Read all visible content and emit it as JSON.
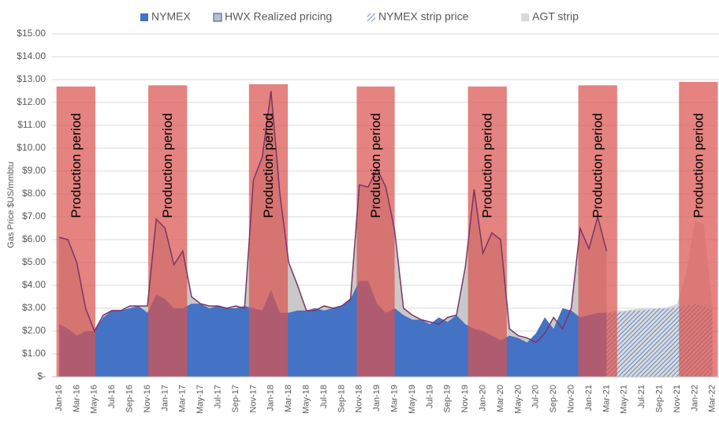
{
  "chart_data": {
    "type": "area",
    "y_label": "Gas Price $US/mmbtu",
    "categories": [
      "Jan-16",
      null,
      "Mar-16",
      null,
      "May-16",
      null,
      "Jul-16",
      null,
      "Sep-16",
      null,
      "Nov-16",
      null,
      "Jan-17",
      null,
      "Mar-17",
      null,
      "May-17",
      null,
      "Jul-17",
      null,
      "Sep-17",
      null,
      "Nov-17",
      null,
      "Jan-18",
      null,
      "Mar-18",
      null,
      "May-18",
      null,
      "Jul-18",
      null,
      "Sep-18",
      null,
      "Nov-18",
      null,
      "Jan-19",
      null,
      "Mar-19",
      null,
      "May-19",
      null,
      "Jul-19",
      null,
      "Sep-19",
      null,
      "Nov-19",
      null,
      "Jan-20",
      null,
      "Mar-20",
      null,
      "May-20",
      null,
      "Jul-20",
      null,
      "Sep-20",
      null,
      "Nov-20",
      null,
      "Jan-21",
      null,
      "Mar-21",
      null,
      "May-21",
      null,
      "Jul-21",
      null,
      "Sep-21",
      null,
      "Nov-21",
      null,
      "Jan-22",
      null,
      "Mar-22"
    ],
    "series": [
      {
        "name": "AGT strip",
        "color": "#d9d9d9",
        "style": "solid",
        "values": [
          null,
          null,
          null,
          null,
          null,
          null,
          null,
          null,
          null,
          null,
          null,
          null,
          null,
          null,
          null,
          null,
          null,
          null,
          null,
          null,
          null,
          null,
          null,
          null,
          null,
          null,
          null,
          null,
          null,
          null,
          null,
          null,
          null,
          null,
          null,
          null,
          null,
          null,
          null,
          null,
          null,
          null,
          null,
          null,
          null,
          null,
          null,
          null,
          null,
          null,
          null,
          null,
          null,
          null,
          null,
          null,
          null,
          null,
          null,
          null,
          null,
          null,
          2.8,
          2.9,
          2.9,
          2.95,
          3.0,
          3.0,
          3.0,
          3.05,
          3.2,
          4.5,
          6.8,
          6.7,
          3.0
        ]
      },
      {
        "name": "HWX Realized pricing",
        "color": "#c9c9c9",
        "line_color": "#7b3468",
        "style": "solid",
        "values": [
          6.1,
          6.0,
          5.0,
          3.0,
          2.0,
          2.7,
          2.9,
          2.9,
          3.1,
          3.1,
          3.1,
          6.9,
          6.5,
          4.9,
          5.5,
          3.5,
          3.2,
          3.1,
          3.1,
          3.0,
          3.1,
          3.0,
          8.6,
          9.6,
          12.5,
          8.0,
          5.0,
          4.0,
          2.9,
          2.9,
          3.1,
          3.0,
          3.1,
          3.4,
          8.4,
          8.3,
          9.1,
          8.3,
          6.4,
          3.0,
          2.7,
          2.5,
          2.4,
          2.3,
          2.6,
          2.7,
          4.8,
          8.2,
          5.4,
          6.3,
          6.0,
          2.1,
          1.8,
          1.7,
          1.5,
          1.9,
          2.6,
          2.1,
          3.0,
          6.5,
          5.6,
          7.0,
          5.5,
          null,
          null,
          null,
          null,
          null,
          null,
          null,
          null,
          null,
          null,
          null,
          null
        ]
      },
      {
        "name": "NYMEX",
        "color": "#4472c4",
        "style": "solid",
        "values": [
          2.3,
          2.1,
          1.8,
          2.0,
          2.0,
          2.6,
          2.9,
          2.9,
          3.0,
          3.1,
          2.8,
          3.6,
          3.4,
          3.0,
          3.0,
          3.2,
          3.2,
          3.0,
          3.1,
          3.0,
          3.0,
          3.1,
          3.0,
          2.9,
          3.8,
          2.8,
          2.8,
          2.9,
          2.9,
          3.0,
          2.9,
          3.0,
          3.1,
          3.4,
          4.2,
          4.2,
          3.2,
          2.8,
          3.0,
          2.7,
          2.5,
          2.5,
          2.3,
          2.6,
          2.4,
          2.7,
          2.3,
          2.1,
          2.0,
          1.8,
          1.6,
          1.8,
          1.7,
          1.5,
          1.9,
          2.6,
          2.1,
          3.0,
          2.9,
          2.6,
          2.7,
          2.8,
          2.8,
          null,
          null,
          null,
          null,
          null,
          null,
          null,
          null,
          null,
          null,
          null,
          null
        ]
      },
      {
        "name": "NYMEX strip price",
        "color": "#4472c4",
        "style": "hatch",
        "values": [
          null,
          null,
          null,
          null,
          null,
          null,
          null,
          null,
          null,
          null,
          null,
          null,
          null,
          null,
          null,
          null,
          null,
          null,
          null,
          null,
          null,
          null,
          null,
          null,
          null,
          null,
          null,
          null,
          null,
          null,
          null,
          null,
          null,
          null,
          null,
          null,
          null,
          null,
          null,
          null,
          null,
          null,
          null,
          null,
          null,
          null,
          null,
          null,
          null,
          null,
          null,
          null,
          null,
          null,
          null,
          null,
          null,
          null,
          null,
          null,
          null,
          null,
          2.8,
          2.8,
          2.85,
          2.9,
          2.9,
          2.95,
          3.0,
          3.0,
          3.05,
          3.1,
          3.2,
          3.1,
          2.9
        ]
      }
    ],
    "legend_order": [
      2,
      1,
      3,
      0
    ],
    "annotations": [
      {
        "text": "Production period",
        "x0": -0.3,
        "x1": 4.1,
        "y": 12.7
      },
      {
        "text": "Production period",
        "x0": 10.1,
        "x1": 14.5,
        "y": 12.75
      },
      {
        "text": "Production period",
        "x0": 21.5,
        "x1": 25.9,
        "y": 12.8
      },
      {
        "text": "Production period",
        "x0": 33.7,
        "x1": 38.0,
        "y": 12.7
      },
      {
        "text": "Production period",
        "x0": 46.3,
        "x1": 50.7,
        "y": 12.7
      },
      {
        "text": "Production period",
        "x0": 58.8,
        "x1": 63.2,
        "y": 12.75
      },
      {
        "text": "Production period",
        "x0": 70.2,
        "x1": 74.6,
        "y": 12.9
      }
    ],
    "annotation_color": "#d9534f",
    "ylim": [
      0,
      15
    ],
    "yticks": [
      {
        "value": 0,
        "label": "$-"
      },
      {
        "value": 1,
        "label": "$1.00"
      },
      {
        "value": 2,
        "label": "$2.00"
      },
      {
        "value": 3,
        "label": "$3.00"
      },
      {
        "value": 4,
        "label": "$4.00"
      },
      {
        "value": 5,
        "label": "$5.00"
      },
      {
        "value": 6,
        "label": "$6.00"
      },
      {
        "value": 7,
        "label": "$7.00"
      },
      {
        "value": 8,
        "label": "$8.00"
      },
      {
        "value": 9,
        "label": "$9.00"
      },
      {
        "value": 10,
        "label": "$10.00"
      },
      {
        "value": 11,
        "label": "$11.00"
      },
      {
        "value": 12,
        "label": "$12.00"
      },
      {
        "value": 13,
        "label": "$13.00"
      },
      {
        "value": 14,
        "label": "$14.00"
      },
      {
        "value": 15,
        "label": "$15.00"
      }
    ],
    "grid": true
  }
}
